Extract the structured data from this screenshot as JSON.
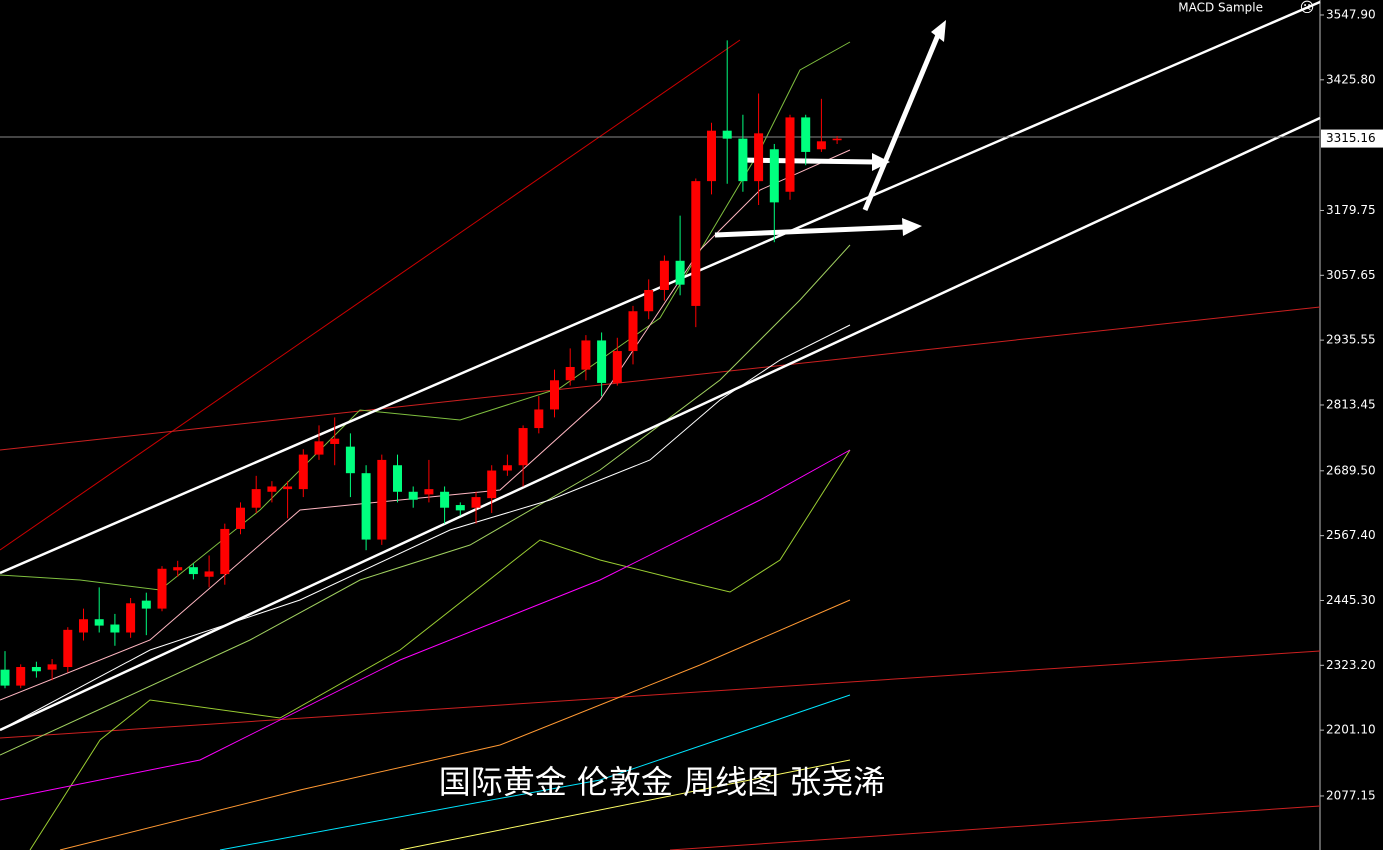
{
  "chart_data": {
    "type": "candlestick",
    "indicator_label": "MACD Sample",
    "indicator_icon": "☹",
    "annotation": "国际黄金 伦敦金 周线图 张尧浠",
    "current_price": 3315.16,
    "up_color": "#ff0000",
    "down_color": "#00ff7f",
    "ylim": [
      1975.4,
      3576.1
    ],
    "yticks": [
      {
        "value": 3547.9,
        "label": "3547.90"
      },
      {
        "value": 3425.8,
        "label": "3425.80"
      },
      3179.75,
      3057.65,
      2935.55,
      {
        "value": 2813.45,
        "label": "2813.45"
      },
      {
        "value": 2689.5,
        "label": "2689.50"
      },
      {
        "value": 2567.4,
        "label": "2567.40"
      },
      {
        "value": 2445.3,
        "label": "2445.30"
      },
      {
        "value": 2323.2,
        "label": "2323.20"
      },
      {
        "value": 2201.1,
        "label": "2201.10"
      },
      2077.15
    ],
    "categories": [
      null,
      null,
      null,
      null,
      null,
      null,
      null,
      null,
      null,
      null,
      null,
      null,
      null,
      null,
      null,
      null,
      null,
      null,
      null,
      null,
      null,
      null,
      null,
      null,
      null,
      null,
      null,
      null,
      null,
      null,
      null,
      null,
      null,
      null,
      null,
      null,
      null,
      null,
      null,
      null,
      null,
      null,
      null,
      null,
      null,
      null,
      null,
      null,
      null,
      null,
      null,
      null,
      null,
      null
    ],
    "open": [
      2315,
      2285,
      2320,
      2315,
      2320,
      2385,
      2410,
      2400,
      2385,
      2445,
      2430,
      2502,
      2508,
      2490,
      2495,
      2580,
      2620,
      2650,
      2655,
      2655,
      2720,
      2740,
      2735,
      2685,
      2560,
      2700,
      2650,
      2645,
      2650,
      2625,
      2620,
      2638,
      2690,
      2700,
      2770,
      2805,
      2860,
      2880,
      2935,
      2855,
      2915,
      2990,
      3030,
      3085,
      3000,
      3235,
      3330,
      3315,
      3235,
      3295,
      3215,
      3355,
      3295,
      3312
    ],
    "high": [
      2350,
      2325,
      2330,
      2335,
      2395,
      2430,
      2470,
      2420,
      2450,
      2460,
      2510,
      2520,
      2515,
      2530,
      2590,
      2630,
      2680,
      2670,
      2670,
      2730,
      2775,
      2790,
      2760,
      2700,
      2720,
      2720,
      2660,
      2710,
      2660,
      2630,
      2650,
      2700,
      2720,
      2775,
      2830,
      2880,
      2920,
      2945,
      2950,
      2940,
      3000,
      3050,
      3095,
      3170,
      3240,
      3345,
      3500,
      3360,
      3400,
      3305,
      3360,
      3360,
      3390,
      3320
    ],
    "low": [
      2280,
      2280,
      2300,
      2295,
      2310,
      2370,
      2385,
      2360,
      2375,
      2380,
      2425,
      2490,
      2485,
      2470,
      2475,
      2570,
      2610,
      2630,
      2600,
      2640,
      2710,
      2700,
      2640,
      2540,
      2550,
      2630,
      2620,
      2630,
      2590,
      2605,
      2590,
      2610,
      2680,
      2660,
      2760,
      2790,
      2850,
      2860,
      2830,
      2850,
      2890,
      2975,
      3010,
      3020,
      2960,
      3210,
      3230,
      3215,
      3190,
      3120,
      3200,
      3265,
      3290,
      3305
    ],
    "close": [
      2285,
      2320,
      2312,
      2325,
      2390,
      2410,
      2398,
      2385,
      2440,
      2430,
      2505,
      2508,
      2495,
      2500,
      2580,
      2620,
      2655,
      2660,
      2660,
      2720,
      2745,
      2750,
      2685,
      2560,
      2710,
      2650,
      2635,
      2655,
      2620,
      2615,
      2640,
      2690,
      2700,
      2770,
      2805,
      2860,
      2885,
      2935,
      2855,
      2915,
      2990,
      3030,
      3085,
      3040,
      3235,
      3330,
      3315,
      3235,
      3325,
      3195,
      3355,
      3290,
      3310,
      3315
    ]
  }
}
